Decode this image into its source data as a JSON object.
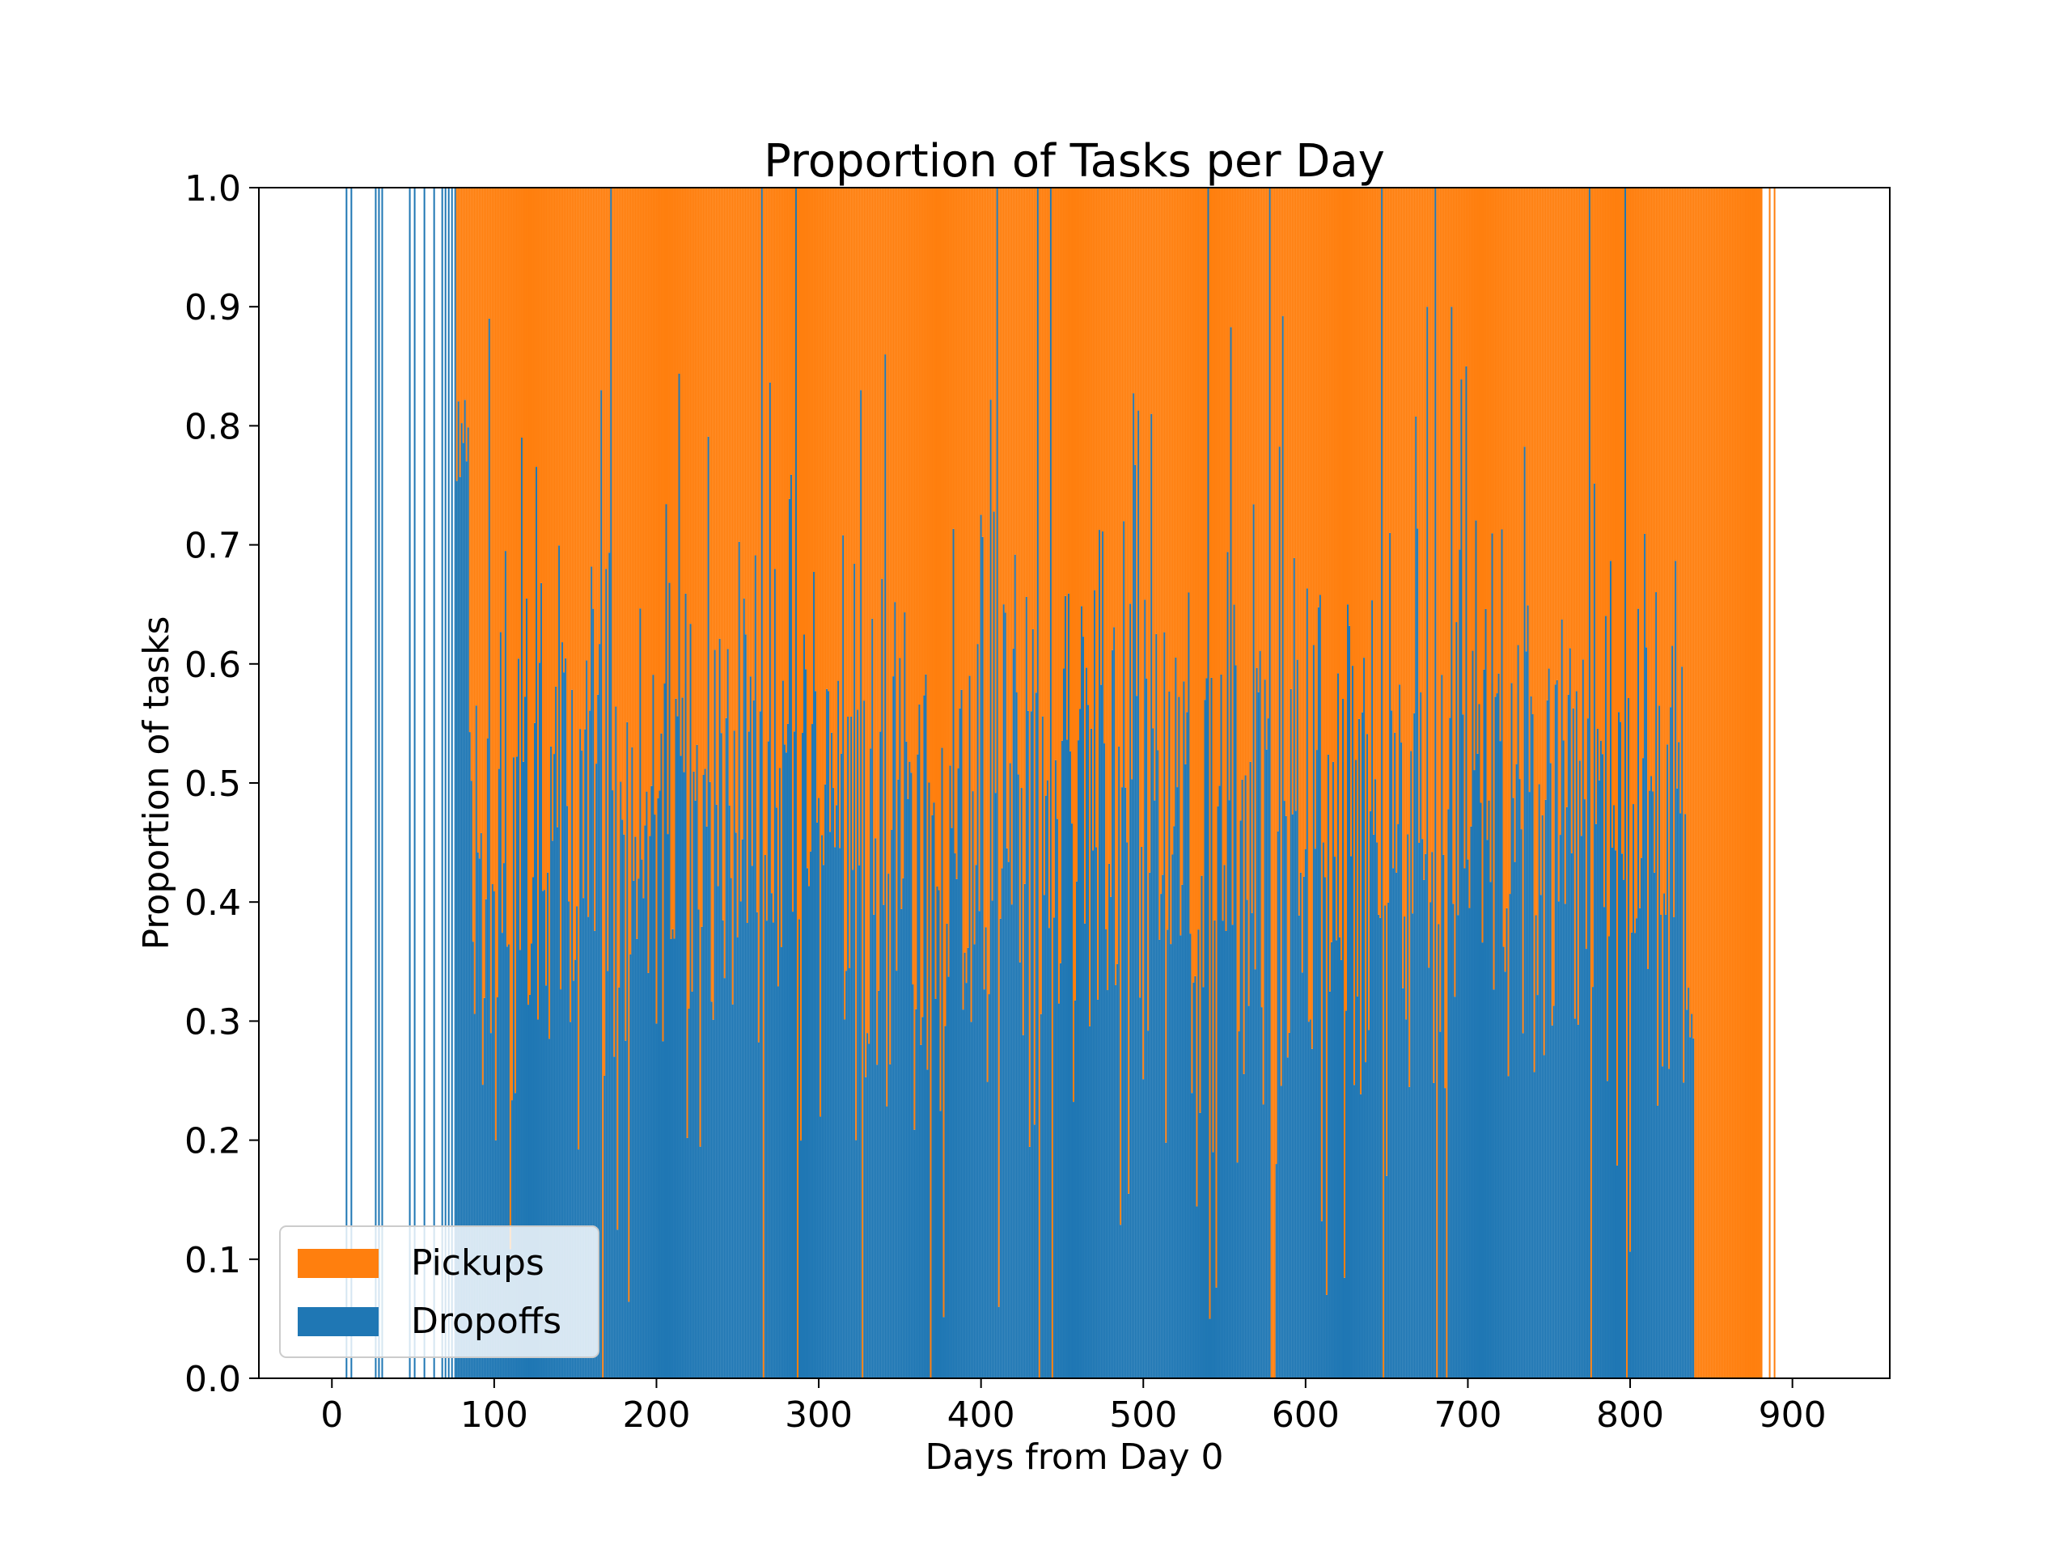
{
  "chart_data": {
    "type": "bar",
    "stacked": true,
    "title": "Proportion of Tasks per Day",
    "xlabel": "Days from Day 0",
    "ylabel": "Proportion of tasks",
    "xlim": [
      -45,
      960
    ],
    "ylim": [
      0,
      1.0
    ],
    "xticks": [
      0,
      100,
      200,
      300,
      400,
      500,
      600,
      700,
      800,
      900
    ],
    "yticks": [
      "0.0",
      "0.1",
      "0.2",
      "0.3",
      "0.4",
      "0.5",
      "0.6",
      "0.7",
      "0.8",
      "0.9",
      "1.0"
    ],
    "grid": false,
    "legend_position": "lower-left",
    "series": [
      {
        "name": "Pickups",
        "color": "#ff7f0e",
        "stack_position": "top"
      },
      {
        "name": "Dropoffs",
        "color": "#1f77b4",
        "stack_position": "bottom"
      }
    ],
    "segments": [
      {
        "from": 76,
        "to": 85,
        "dropoffs_range": [
          0.6,
          0.86
        ],
        "mean": 0.78
      },
      {
        "from": 85,
        "to": 835,
        "dropoffs_range": [
          0.05,
          0.9
        ],
        "mean": 0.47
      },
      {
        "from": 835,
        "to": 840,
        "dropoffs_range": [
          0.21,
          0.35
        ],
        "mean": 0.3
      },
      {
        "from": 840,
        "to": 882,
        "dropoffs_range": [
          0.0,
          0.0
        ],
        "mean": 0.0
      }
    ],
    "notable_days": [
      {
        "x": 9,
        "dropoffs": 1.0
      },
      {
        "x": 12,
        "dropoffs": 1.0
      },
      {
        "x": 27,
        "dropoffs": 1.0
      },
      {
        "x": 29,
        "dropoffs": 1.0
      },
      {
        "x": 31,
        "dropoffs": 1.0
      },
      {
        "x": 48,
        "dropoffs": 1.0
      },
      {
        "x": 51,
        "dropoffs": 1.0
      },
      {
        "x": 57,
        "dropoffs": 1.0
      },
      {
        "x": 63,
        "dropoffs": 1.0
      },
      {
        "x": 68,
        "dropoffs": 1.0
      },
      {
        "x": 70,
        "dropoffs": 1.0
      },
      {
        "x": 72,
        "dropoffs": 1.0
      },
      {
        "x": 74,
        "dropoffs": 1.0
      },
      {
        "x": 76,
        "dropoffs": 1.0
      },
      {
        "x": 97,
        "dropoffs": 0.89
      },
      {
        "x": 98,
        "dropoffs": 0.29
      },
      {
        "x": 102,
        "dropoffs": 0.32
      },
      {
        "x": 132,
        "dropoffs": 0.33
      },
      {
        "x": 166,
        "dropoffs": 0.83
      },
      {
        "x": 167,
        "dropoffs": 0.0
      },
      {
        "x": 172,
        "dropoffs": 1.0
      },
      {
        "x": 174,
        "dropoffs": 0.27
      },
      {
        "x": 265,
        "dropoffs": 1.0
      },
      {
        "x": 266,
        "dropoffs": 0.0
      },
      {
        "x": 286,
        "dropoffs": 1.0
      },
      {
        "x": 287,
        "dropoffs": 0.0
      },
      {
        "x": 323,
        "dropoffs": 0.2
      },
      {
        "x": 326,
        "dropoffs": 0.83
      },
      {
        "x": 327,
        "dropoffs": 0.0
      },
      {
        "x": 330,
        "dropoffs": 0.29
      },
      {
        "x": 341,
        "dropoffs": 0.86
      },
      {
        "x": 363,
        "dropoffs": 0.28
      },
      {
        "x": 369,
        "dropoffs": 0.0
      },
      {
        "x": 410,
        "dropoffs": 1.0
      },
      {
        "x": 411,
        "dropoffs": 0.06
      },
      {
        "x": 435,
        "dropoffs": 1.0
      },
      {
        "x": 436,
        "dropoffs": 0.0
      },
      {
        "x": 443,
        "dropoffs": 1.0
      },
      {
        "x": 444,
        "dropoffs": 0.0
      },
      {
        "x": 505,
        "dropoffs": 0.81
      },
      {
        "x": 540,
        "dropoffs": 1.0
      },
      {
        "x": 541,
        "dropoffs": 0.05
      },
      {
        "x": 543,
        "dropoffs": 0.19
      },
      {
        "x": 574,
        "dropoffs": 0.23
      },
      {
        "x": 578,
        "dropoffs": 1.0
      },
      {
        "x": 579,
        "dropoffs": 0.0
      },
      {
        "x": 580,
        "dropoffs": 0.0
      },
      {
        "x": 581,
        "dropoffs": 0.0
      },
      {
        "x": 582,
        "dropoffs": 0.18
      },
      {
        "x": 613,
        "dropoffs": 0.07
      },
      {
        "x": 647,
        "dropoffs": 1.0
      },
      {
        "x": 648,
        "dropoffs": 0.0
      },
      {
        "x": 650,
        "dropoffs": 0.17
      },
      {
        "x": 675,
        "dropoffs": 0.9
      },
      {
        "x": 680,
        "dropoffs": 1.0
      },
      {
        "x": 681,
        "dropoffs": 0.0
      },
      {
        "x": 687,
        "dropoffs": 0.0
      },
      {
        "x": 690,
        "dropoffs": 0.9
      },
      {
        "x": 699,
        "dropoffs": 0.85
      },
      {
        "x": 775,
        "dropoffs": 1.0
      },
      {
        "x": 776,
        "dropoffs": 0.0
      },
      {
        "x": 797,
        "dropoffs": 1.0
      },
      {
        "x": 798,
        "dropoffs": 0.0
      },
      {
        "x": 862,
        "dropoffs": 0.0
      },
      {
        "x": 886,
        "dropoffs": 0.0
      },
      {
        "x": 889,
        "dropoffs": 0.0
      }
    ]
  }
}
